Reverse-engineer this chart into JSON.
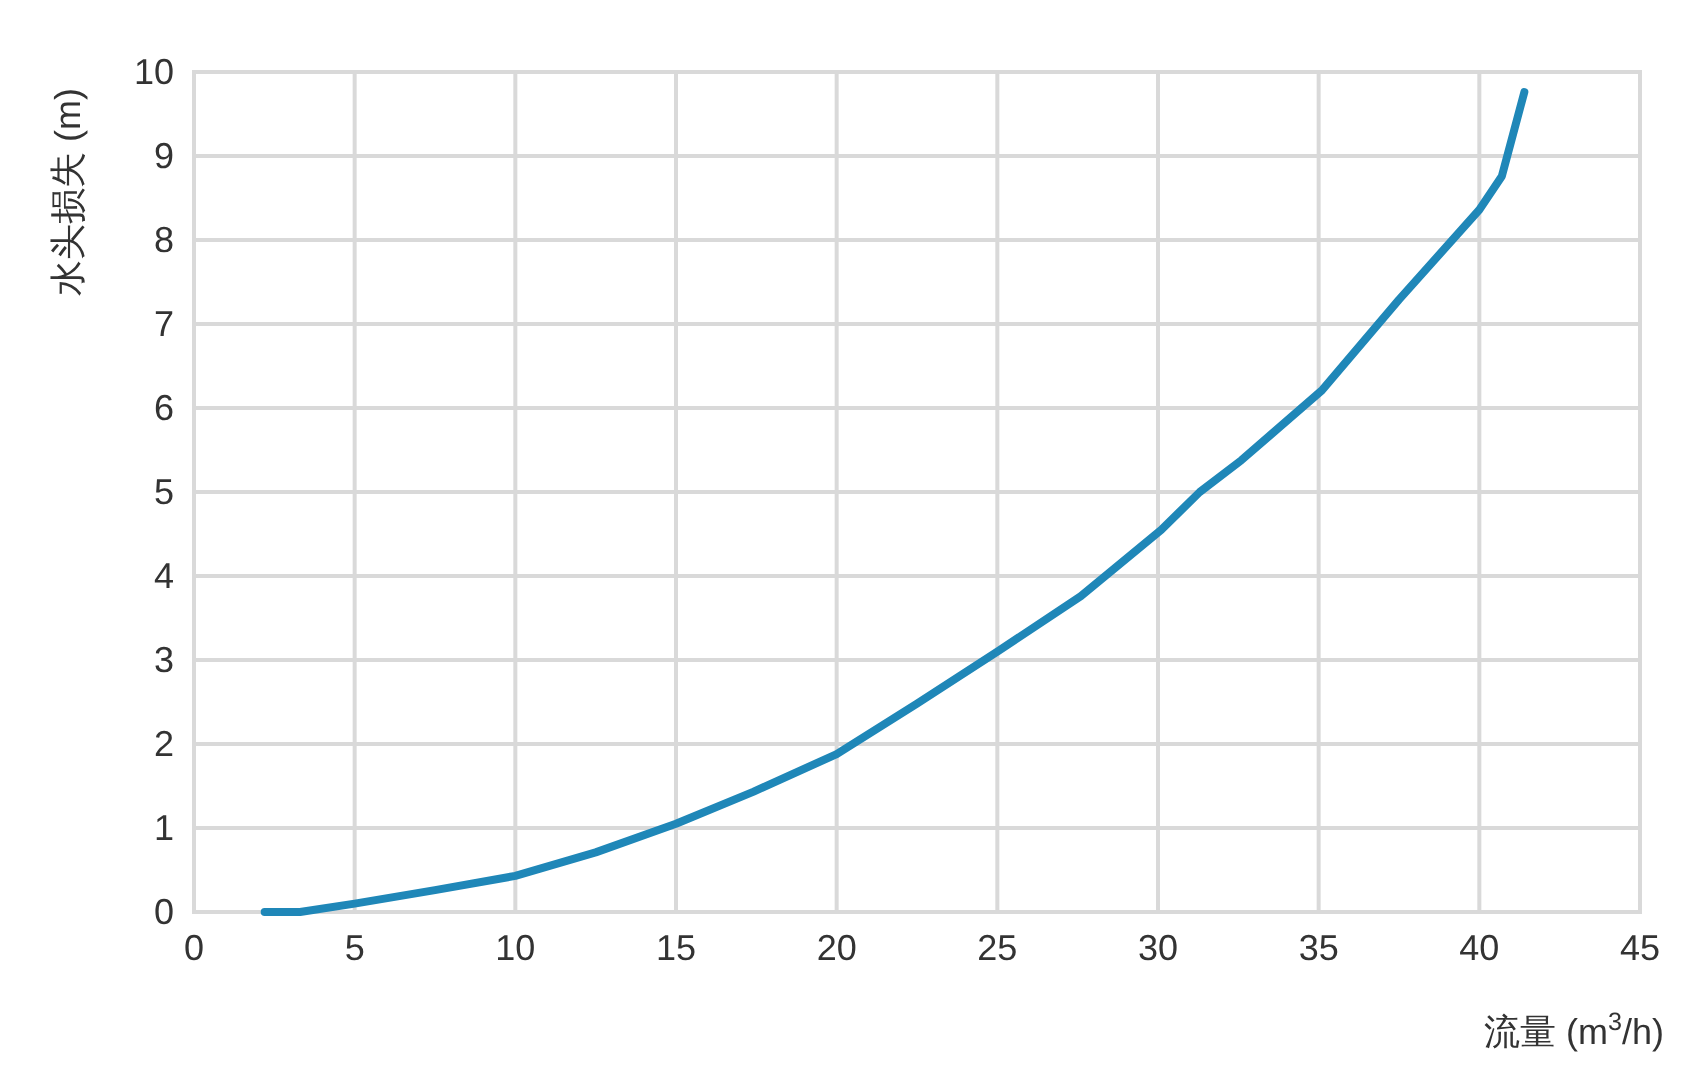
{
  "chart_data": {
    "type": "line",
    "xlabel": "流量 (m$^{3}$/h)",
    "ylabel": "水头损失 (m)",
    "xlim": [
      0,
      45
    ],
    "ylim": [
      0,
      10
    ],
    "xticks": [
      0,
      5,
      10,
      15,
      20,
      25,
      30,
      35,
      40,
      45
    ],
    "yticks": [
      0,
      1,
      2,
      3,
      4,
      5,
      6,
      7,
      8,
      9,
      10
    ],
    "grid": true,
    "marker": "none",
    "line_style": "solid",
    "series": [
      {
        "color": "#1f87b8",
        "x": [
          2.2,
          3.3,
          5,
          7.5,
          10,
          12.5,
          15,
          17.4,
          20,
          22.5,
          25,
          27.6,
          30.1,
          31.3,
          32.6,
          35.1,
          37.5,
          40,
          40.7,
          41.4
        ],
        "values": [
          0,
          0,
          0.1,
          0.26,
          0.43,
          0.71,
          1.05,
          1.43,
          1.88,
          2.48,
          3.1,
          3.76,
          4.55,
          5.0,
          5.38,
          6.21,
          7.29,
          8.36,
          8.76,
          9.76
        ]
      }
    ]
  }
}
